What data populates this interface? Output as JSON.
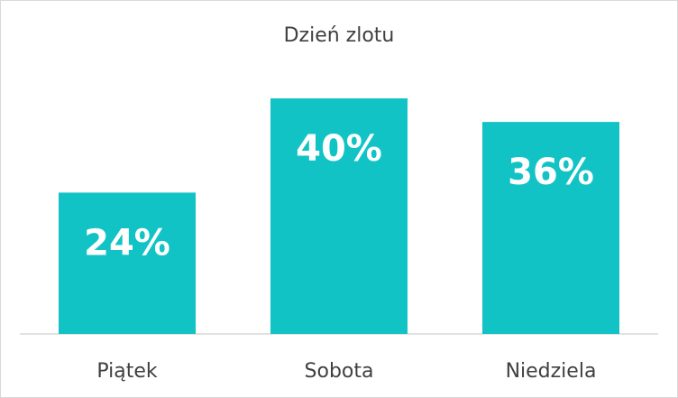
{
  "chart_data": {
    "type": "bar",
    "title": "Dzień zlotu",
    "categories": [
      "Piątek",
      "Sobota",
      "Niedziela"
    ],
    "values": [
      24,
      40,
      36
    ],
    "value_labels": [
      "24%",
      "40%",
      "36%"
    ],
    "color": "#12c3c6"
  }
}
